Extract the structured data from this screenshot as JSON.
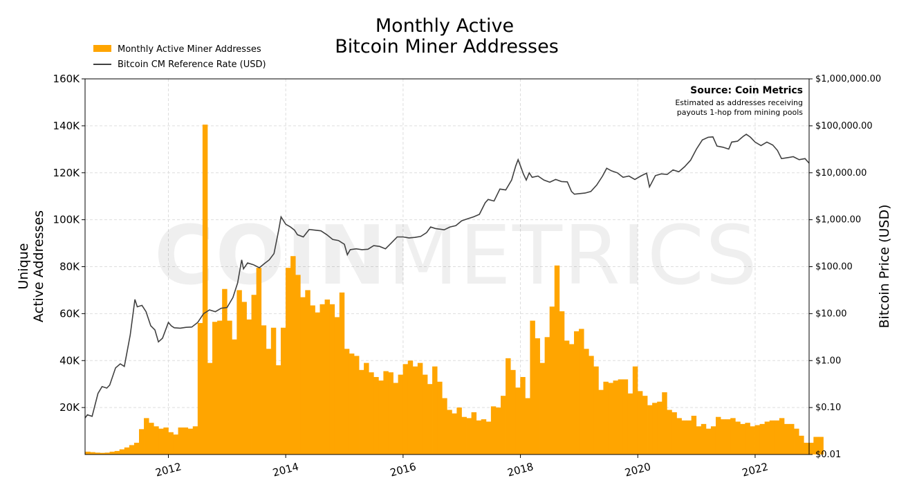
{
  "chart_data": {
    "type": "bar",
    "title": "Monthly Active Bitcoin Miner Addresses",
    "title_lines": [
      "Monthly Active",
      "Bitcoin Miner Addresses"
    ],
    "ylabel_lines": [
      "Unique",
      "Active Addresses"
    ],
    "y2label": "Bitcoin Price (USD)",
    "xlim": [
      2010.58,
      2022.92
    ],
    "ylim": [
      0,
      160000
    ],
    "y2lim_log10": [
      -2,
      6
    ],
    "x_ticks": [
      2012,
      2014,
      2016,
      2018,
      2020,
      2022
    ],
    "x_tick_labels": [
      "2012",
      "2014",
      "2016",
      "2018",
      "2020",
      "2022"
    ],
    "y_ticks": [
      20000,
      40000,
      60000,
      80000,
      100000,
      120000,
      140000,
      160000
    ],
    "y_tick_labels": [
      "20K",
      "40K",
      "60K",
      "80K",
      "100K",
      "120K",
      "140K",
      "160K"
    ],
    "y2_ticks_log10": [
      -2,
      -1,
      0,
      1,
      2,
      3,
      4,
      5,
      6
    ],
    "y2_tick_labels": [
      "$0.01",
      "$0.10",
      "$1.00",
      "$10.00",
      "$100.00",
      "$1,000.00",
      "$10,000.00",
      "$100,000.00",
      "$1,000,000.00"
    ],
    "grid": true,
    "legend_position": "top-left",
    "legend": [
      {
        "label": "Monthly Active Miner Addresses",
        "kind": "bar"
      },
      {
        "label": "Bitcoin CM Reference Rate (USD)",
        "kind": "line"
      }
    ],
    "annotation": {
      "title": "Source: Coin Metrics",
      "lines": [
        "Estimated as addresses receiving",
        "payouts 1-hop from mining pools"
      ]
    },
    "watermark": {
      "bold": "COIN",
      "light": "METRICS"
    },
    "bar_start": 2010.583,
    "bar_width": 0.0833,
    "bar_values": [
      1200,
      1000,
      800,
      700,
      800,
      1200,
      1500,
      2200,
      3000,
      4000,
      5000,
      10800,
      15500,
      13500,
      12000,
      11000,
      11500,
      9500,
      8500,
      11500,
      11500,
      11000,
      12000,
      56000,
      140500,
      39000,
      56500,
      57000,
      70500,
      57000,
      49000,
      70000,
      65000,
      57500,
      68000,
      79500,
      55000,
      45000,
      54000,
      38000,
      54000,
      79500,
      84500,
      76500,
      67000,
      70000,
      63500,
      60500,
      64000,
      66000,
      64000,
      58500,
      69000,
      45000,
      43000,
      42000,
      36000,
      39000,
      35000,
      33000,
      31500,
      35500,
      35000,
      30500,
      34000,
      38500,
      40000,
      37500,
      39000,
      34000,
      30000,
      37500,
      31000,
      24000,
      19000,
      17500,
      20000,
      16000,
      15500,
      18000,
      14500,
      15000,
      14000,
      20500,
      20000,
      25000,
      41000,
      36000,
      28500,
      33000,
      24000,
      57000,
      49500,
      39000,
      50000,
      63000,
      80500,
      61000,
      48500,
      47000,
      52500,
      53500,
      45000,
      42000,
      37500,
      27500,
      31000,
      30500,
      31500,
      32000,
      32000,
      26000,
      37500,
      27000,
      25000,
      21000,
      22000,
      22500,
      26500,
      19000,
      18000,
      15500,
      14500,
      14500,
      16500,
      12000,
      13000,
      11000,
      12000,
      16000,
      15000,
      15000,
      15500,
      14000,
      13000,
      13500,
      12000,
      12500,
      13000,
      14000,
      14500,
      14500,
      15500,
      13000,
      13000,
      11000,
      8000,
      5000,
      5000,
      7500,
      7500
    ],
    "price_series": [
      [
        2010.58,
        0.06
      ],
      [
        2010.62,
        0.07
      ],
      [
        2010.7,
        0.065
      ],
      [
        2010.8,
        0.2
      ],
      [
        2010.87,
        0.28
      ],
      [
        2010.95,
        0.26
      ],
      [
        2011.0,
        0.3
      ],
      [
        2011.1,
        0.7
      ],
      [
        2011.18,
        0.85
      ],
      [
        2011.25,
        0.75
      ],
      [
        2011.35,
        3.5
      ],
      [
        2011.43,
        20
      ],
      [
        2011.47,
        14
      ],
      [
        2011.55,
        15
      ],
      [
        2011.62,
        11
      ],
      [
        2011.7,
        5.5
      ],
      [
        2011.77,
        4.5
      ],
      [
        2011.83,
        2.5
      ],
      [
        2011.9,
        3.0
      ],
      [
        2012.0,
        6.5
      ],
      [
        2012.05,
        5.5
      ],
      [
        2012.1,
        5.0
      ],
      [
        2012.2,
        4.9
      ],
      [
        2012.3,
        5.1
      ],
      [
        2012.4,
        5.2
      ],
      [
        2012.5,
        6.5
      ],
      [
        2012.6,
        10
      ],
      [
        2012.7,
        12
      ],
      [
        2012.8,
        11
      ],
      [
        2012.9,
        13
      ],
      [
        2013.0,
        13.5
      ],
      [
        2013.1,
        22
      ],
      [
        2013.18,
        45
      ],
      [
        2013.25,
        140
      ],
      [
        2013.28,
        90
      ],
      [
        2013.35,
        120
      ],
      [
        2013.45,
        110
      ],
      [
        2013.55,
        95
      ],
      [
        2013.65,
        120
      ],
      [
        2013.72,
        140
      ],
      [
        2013.8,
        190
      ],
      [
        2013.88,
        600
      ],
      [
        2013.92,
        1150
      ],
      [
        2014.0,
        800
      ],
      [
        2014.08,
        700
      ],
      [
        2014.15,
        600
      ],
      [
        2014.2,
        480
      ],
      [
        2014.3,
        430
      ],
      [
        2014.4,
        620
      ],
      [
        2014.5,
        600
      ],
      [
        2014.6,
        580
      ],
      [
        2014.7,
        480
      ],
      [
        2014.8,
        380
      ],
      [
        2014.9,
        360
      ],
      [
        2015.0,
        300
      ],
      [
        2015.05,
        180
      ],
      [
        2015.1,
        230
      ],
      [
        2015.2,
        240
      ],
      [
        2015.3,
        230
      ],
      [
        2015.4,
        235
      ],
      [
        2015.5,
        280
      ],
      [
        2015.6,
        270
      ],
      [
        2015.7,
        240
      ],
      [
        2015.8,
        320
      ],
      [
        2015.9,
        430
      ],
      [
        2016.0,
        430
      ],
      [
        2016.1,
        410
      ],
      [
        2016.2,
        420
      ],
      [
        2016.3,
        440
      ],
      [
        2016.4,
        530
      ],
      [
        2016.47,
        700
      ],
      [
        2016.55,
        650
      ],
      [
        2016.7,
        610
      ],
      [
        2016.8,
        700
      ],
      [
        2016.9,
        750
      ],
      [
        2017.0,
        950
      ],
      [
        2017.1,
        1050
      ],
      [
        2017.2,
        1150
      ],
      [
        2017.3,
        1300
      ],
      [
        2017.4,
        2300
      ],
      [
        2017.45,
        2700
      ],
      [
        2017.55,
        2500
      ],
      [
        2017.65,
        4500
      ],
      [
        2017.75,
        4300
      ],
      [
        2017.85,
        7000
      ],
      [
        2017.92,
        14000
      ],
      [
        2017.96,
        19000
      ],
      [
        2018.0,
        14000
      ],
      [
        2018.05,
        9500
      ],
      [
        2018.1,
        7000
      ],
      [
        2018.15,
        10000
      ],
      [
        2018.2,
        8000
      ],
      [
        2018.3,
        8500
      ],
      [
        2018.4,
        7000
      ],
      [
        2018.5,
        6300
      ],
      [
        2018.6,
        7200
      ],
      [
        2018.7,
        6500
      ],
      [
        2018.8,
        6400
      ],
      [
        2018.87,
        4000
      ],
      [
        2018.92,
        3500
      ],
      [
        2019.0,
        3600
      ],
      [
        2019.1,
        3700
      ],
      [
        2019.2,
        4000
      ],
      [
        2019.3,
        5500
      ],
      [
        2019.4,
        8500
      ],
      [
        2019.47,
        12500
      ],
      [
        2019.55,
        11000
      ],
      [
        2019.65,
        10000
      ],
      [
        2019.75,
        8000
      ],
      [
        2019.85,
        8500
      ],
      [
        2019.95,
        7200
      ],
      [
        2020.05,
        8500
      ],
      [
        2020.15,
        9800
      ],
      [
        2020.2,
        5000
      ],
      [
        2020.3,
        8700
      ],
      [
        2020.4,
        9500
      ],
      [
        2020.5,
        9200
      ],
      [
        2020.6,
        11500
      ],
      [
        2020.7,
        10500
      ],
      [
        2020.8,
        13500
      ],
      [
        2020.9,
        18500
      ],
      [
        2021.0,
        32000
      ],
      [
        2021.1,
        50000
      ],
      [
        2021.2,
        57000
      ],
      [
        2021.28,
        58000
      ],
      [
        2021.35,
        37000
      ],
      [
        2021.45,
        35000
      ],
      [
        2021.55,
        32000
      ],
      [
        2021.6,
        45000
      ],
      [
        2021.7,
        47000
      ],
      [
        2021.8,
        60000
      ],
      [
        2021.85,
        66000
      ],
      [
        2021.92,
        57000
      ],
      [
        2022.0,
        45000
      ],
      [
        2022.1,
        38000
      ],
      [
        2022.2,
        45000
      ],
      [
        2022.3,
        39000
      ],
      [
        2022.38,
        30000
      ],
      [
        2022.45,
        20000
      ],
      [
        2022.55,
        21000
      ],
      [
        2022.65,
        22000
      ],
      [
        2022.75,
        19000
      ],
      [
        2022.85,
        20000
      ],
      [
        2022.92,
        16000
      ]
    ],
    "colors": {
      "bar": "#FFA500",
      "line": "#404040",
      "grid": "#dddddd",
      "watermark": "#000000"
    }
  }
}
